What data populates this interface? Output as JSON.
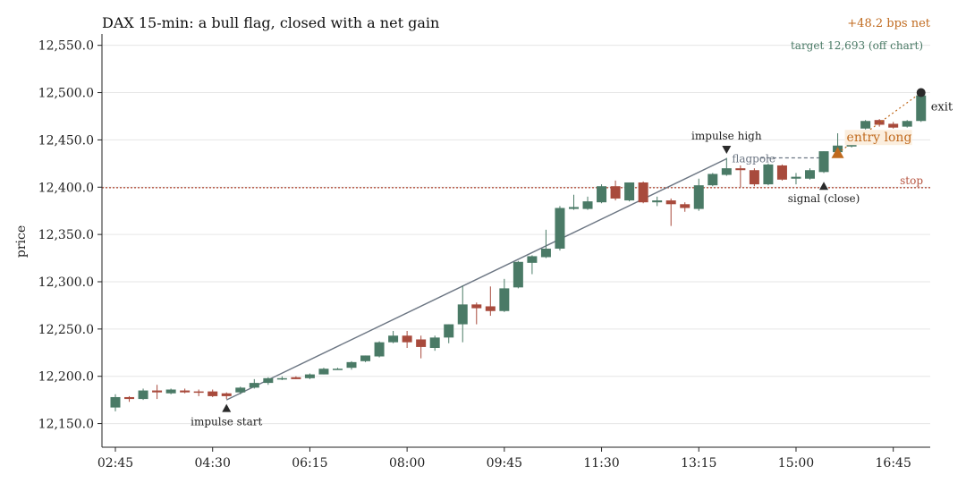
{
  "chart_data": {
    "type": "candlestick",
    "title": "DAX 15-min: a bull flag, closed with a net gain",
    "ylabel": "price",
    "xlabel": "",
    "ylim": [
      12125,
      12562
    ],
    "y_ticks": [
      12150,
      12200,
      12250,
      12300,
      12350,
      12400,
      12450,
      12500,
      12550
    ],
    "y_tick_labels": [
      "12,150.0",
      "12,200.0",
      "12,250.0",
      "12,300.0",
      "12,350.0",
      "12,400.0",
      "12,450.0",
      "12,500.0",
      "12,550.0"
    ],
    "x_tick_labels": [
      "02:45",
      "04:30",
      "06:15",
      "08:00",
      "09:45",
      "11:30",
      "13:15",
      "15:00",
      "16:45"
    ],
    "x_tick_bar_index": [
      0,
      7,
      14,
      21,
      28,
      35,
      42,
      49,
      56
    ],
    "grid": "horizontal",
    "up_color": "#4a7a66",
    "down_color": "#a84a3c",
    "candles": [
      {
        "o": 12167,
        "h": 12181,
        "l": 12163,
        "c": 12178
      },
      {
        "o": 12178,
        "h": 12179,
        "l": 12173,
        "c": 12176
      },
      {
        "o": 12176,
        "h": 12187,
        "l": 12175,
        "c": 12185
      },
      {
        "o": 12185,
        "h": 12191,
        "l": 12176,
        "c": 12183
      },
      {
        "o": 12182,
        "h": 12187,
        "l": 12181,
        "c": 12186
      },
      {
        "o": 12185,
        "h": 12187,
        "l": 12182,
        "c": 12183
      },
      {
        "o": 12184,
        "h": 12186,
        "l": 12179,
        "c": 12183
      },
      {
        "o": 12184,
        "h": 12186,
        "l": 12178,
        "c": 12179
      },
      {
        "o": 12182,
        "h": 12183,
        "l": 12176,
        "c": 12179
      },
      {
        "o": 12183,
        "h": 12189,
        "l": 12181,
        "c": 12188
      },
      {
        "o": 12188,
        "h": 12197,
        "l": 12187,
        "c": 12193
      },
      {
        "o": 12193,
        "h": 12199,
        "l": 12191,
        "c": 12198
      },
      {
        "o": 12197,
        "h": 12200,
        "l": 12196,
        "c": 12198
      },
      {
        "o": 12199,
        "h": 12200,
        "l": 12197,
        "c": 12197
      },
      {
        "o": 12198,
        "h": 12203,
        "l": 12197,
        "c": 12202
      },
      {
        "o": 12202,
        "h": 12209,
        "l": 12202,
        "c": 12208
      },
      {
        "o": 12208,
        "h": 12209,
        "l": 12207,
        "c": 12208
      },
      {
        "o": 12209,
        "h": 12216,
        "l": 12207,
        "c": 12215
      },
      {
        "o": 12216,
        "h": 12222,
        "l": 12215,
        "c": 12222
      },
      {
        "o": 12221,
        "h": 12237,
        "l": 12220,
        "c": 12236
      },
      {
        "o": 12236,
        "h": 12248,
        "l": 12235,
        "c": 12243
      },
      {
        "o": 12243,
        "h": 12248,
        "l": 12230,
        "c": 12236
      },
      {
        "o": 12239,
        "h": 12243,
        "l": 12219,
        "c": 12231
      },
      {
        "o": 12230,
        "h": 12243,
        "l": 12227,
        "c": 12241
      },
      {
        "o": 12241,
        "h": 12255,
        "l": 12235,
        "c": 12255
      },
      {
        "o": 12255,
        "h": 12296,
        "l": 12236,
        "c": 12276
      },
      {
        "o": 12276,
        "h": 12278,
        "l": 12255,
        "c": 12272
      },
      {
        "o": 12274,
        "h": 12295,
        "l": 12264,
        "c": 12269
      },
      {
        "o": 12269,
        "h": 12303,
        "l": 12268,
        "c": 12293
      },
      {
        "o": 12294,
        "h": 12322,
        "l": 12293,
        "c": 12321
      },
      {
        "o": 12320,
        "h": 12328,
        "l": 12308,
        "c": 12327
      },
      {
        "o": 12326,
        "h": 12355,
        "l": 12325,
        "c": 12335
      },
      {
        "o": 12335,
        "h": 12380,
        "l": 12333,
        "c": 12378
      },
      {
        "o": 12377,
        "h": 12392,
        "l": 12376,
        "c": 12379
      },
      {
        "o": 12377,
        "h": 12390,
        "l": 12376,
        "c": 12385
      },
      {
        "o": 12384,
        "h": 12403,
        "l": 12383,
        "c": 12401
      },
      {
        "o": 12401,
        "h": 12407,
        "l": 12386,
        "c": 12388
      },
      {
        "o": 12386,
        "h": 12405,
        "l": 12385,
        "c": 12405
      },
      {
        "o": 12405,
        "h": 12406,
        "l": 12383,
        "c": 12384
      },
      {
        "o": 12384,
        "h": 12390,
        "l": 12380,
        "c": 12386
      },
      {
        "o": 12386,
        "h": 12388,
        "l": 12359,
        "c": 12382
      },
      {
        "o": 12382,
        "h": 12384,
        "l": 12374,
        "c": 12378
      },
      {
        "o": 12377,
        "h": 12409,
        "l": 12375,
        "c": 12402
      },
      {
        "o": 12402,
        "h": 12415,
        "l": 12401,
        "c": 12414
      },
      {
        "o": 12413,
        "h": 12431,
        "l": 12412,
        "c": 12420
      },
      {
        "o": 12420,
        "h": 12423,
        "l": 12400,
        "c": 12418
      },
      {
        "o": 12418,
        "h": 12420,
        "l": 12401,
        "c": 12403
      },
      {
        "o": 12403,
        "h": 12425,
        "l": 12402,
        "c": 12424
      },
      {
        "o": 12423,
        "h": 12424,
        "l": 12407,
        "c": 12408
      },
      {
        "o": 12409,
        "h": 12415,
        "l": 12403,
        "c": 12411
      },
      {
        "o": 12409,
        "h": 12420,
        "l": 12408,
        "c": 12418
      },
      {
        "o": 12416,
        "h": 12438,
        "l": 12415,
        "c": 12438
      },
      {
        "o": 12437,
        "h": 12457,
        "l": 12436,
        "c": 12444
      },
      {
        "o": 12443,
        "h": 12460,
        "l": 12442,
        "c": 12459
      },
      {
        "o": 12462,
        "h": 12471,
        "l": 12461,
        "c": 12470
      },
      {
        "o": 12471,
        "h": 12472,
        "l": 12464,
        "c": 12466
      },
      {
        "o": 12467,
        "h": 12469,
        "l": 12462,
        "c": 12463
      },
      {
        "o": 12464,
        "h": 12471,
        "l": 12463,
        "c": 12470
      },
      {
        "o": 12470,
        "h": 12500,
        "l": 12469,
        "c": 12497
      }
    ],
    "stop": {
      "label": "stop",
      "value": 12399.5,
      "color": "#b5533f"
    },
    "flagpole": {
      "label": "flagpole",
      "start_index": 8,
      "start_value": 12175,
      "end_index": 44,
      "end_value": 12430
    },
    "flag_top": {
      "start_index": 45,
      "end_index": 51,
      "value": 12431
    },
    "markers": [
      {
        "label": "impulse start",
        "index": 8,
        "value": 12166,
        "shape": "triangle-up",
        "color": "#2a2a2a"
      },
      {
        "label": "impulse high",
        "index": 44,
        "value": 12440,
        "shape": "triangle-down",
        "color": "#2a2a2a"
      },
      {
        "label": "signal (close)",
        "index": 51,
        "value": 12401,
        "shape": "triangle-up",
        "color": "#2a2a2a"
      },
      {
        "label": "entry long",
        "index": 52,
        "value": 12436,
        "shape": "triangle-up",
        "color": "#c06a1e"
      },
      {
        "label": "exit",
        "index": 58,
        "value": 12500,
        "shape": "circle",
        "color": "#2a2a2a"
      }
    ],
    "annotations": {
      "net": "+48.2 bps net",
      "target": "target 12,693 (off chart)"
    },
    "colors": {
      "net": "#c06a1e",
      "target": "#4a7a66",
      "entry": "#c06a1e",
      "flagpole": "#6c7683",
      "stop": "#b5533f"
    }
  }
}
